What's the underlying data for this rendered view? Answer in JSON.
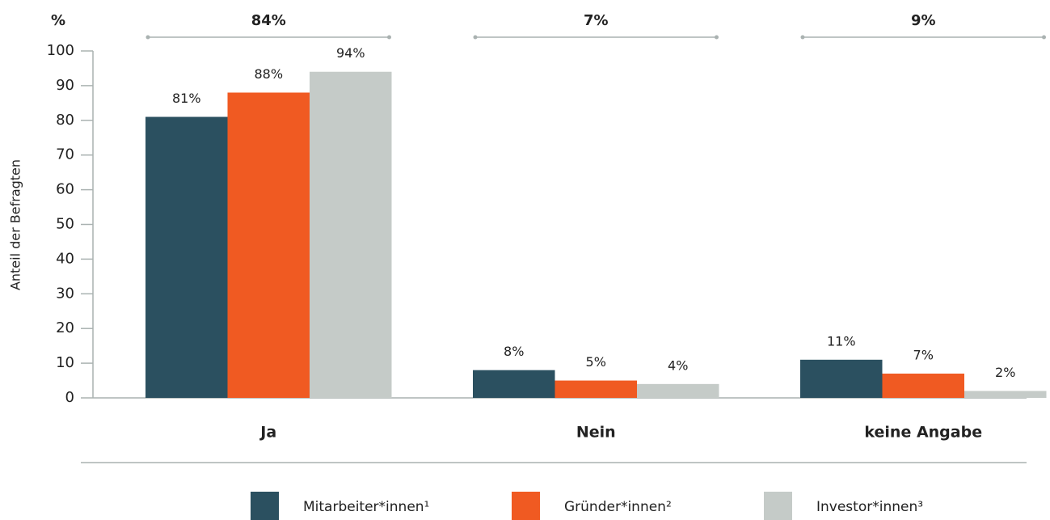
{
  "chart_data": {
    "type": "bar",
    "unit_label": "%",
    "y_axis_label": "Anteil der Befragten",
    "categories": [
      "Ja",
      "Nein",
      "keine Angabe"
    ],
    "group_totals": [
      84,
      7,
      9
    ],
    "group_total_labels": [
      "84%",
      "7%",
      "9%"
    ],
    "series": [
      {
        "name": "Mitarbeiter*innen¹",
        "color": "#2b5060",
        "values": [
          81,
          8,
          11
        ],
        "value_labels": [
          "81%",
          "8%",
          "11%"
        ]
      },
      {
        "name": "Gründer*innen²",
        "color": "#f05a22",
        "values": [
          88,
          5,
          7
        ],
        "value_labels": [
          "88%",
          "5%",
          "7%"
        ]
      },
      {
        "name": "Investor*innen³",
        "color": "#c5cbc8",
        "values": [
          94,
          4,
          2
        ],
        "value_labels": [
          "94%",
          "4%",
          "2%"
        ]
      }
    ],
    "ylim": [
      0,
      100
    ],
    "yticks": [
      0,
      10,
      20,
      30,
      40,
      50,
      60,
      70,
      80,
      90,
      100
    ],
    "legend": "bottom"
  }
}
